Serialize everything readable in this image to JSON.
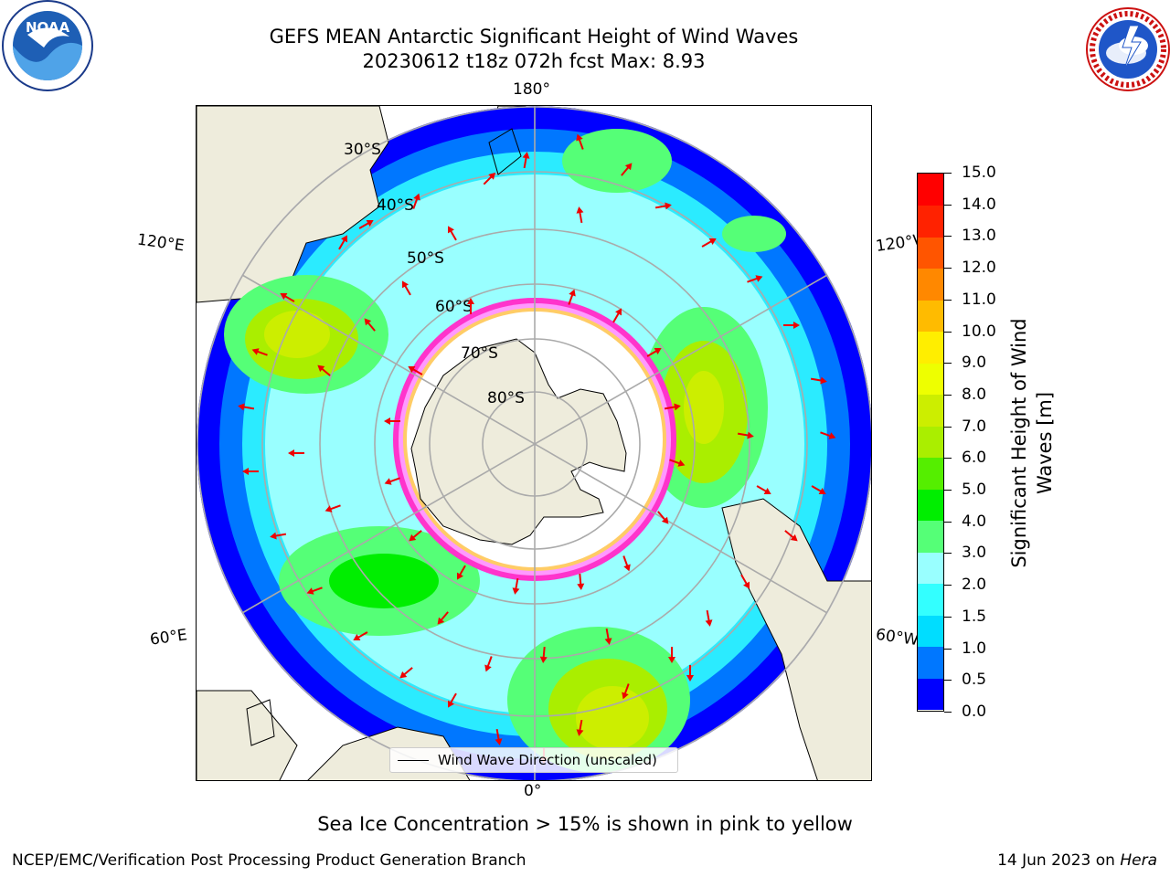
{
  "title": {
    "line1": "GEFS MEAN Antarctic Significant Height of Wind Waves",
    "line2": "20230612 t18z 072h fcst   Max: 8.93"
  },
  "logos": {
    "left": {
      "name": "noaa-logo",
      "text": "NOAA",
      "ring_text": "NATIONAL OCEANIC AND ATMOSPHERIC ADMINISTRATION"
    },
    "right": {
      "name": "nws-logo",
      "ring_text": "NATIONAL WEATHER SERVICE"
    }
  },
  "map": {
    "projection": "south-polar-stereographic",
    "longitude_labels": {
      "top": "180°",
      "bottom": "0°",
      "upper_left": "120°E",
      "upper_right": "120°W",
      "lower_left": "60°E",
      "lower_right": "60°W"
    },
    "latitude_labels": [
      "30°S",
      "40°S",
      "50°S",
      "60°S",
      "70°S",
      "80°S"
    ],
    "land_color": "#eeecdc",
    "ocean_no_data_color": "#ffffff",
    "sea_ice_colors": [
      "#ff33cc",
      "#ff99ff",
      "#ffcc66",
      "#ffff66"
    ],
    "arrow_color": "#ee0000",
    "legend": {
      "entry": "Wind Wave Direction (unscaled)"
    }
  },
  "colorbar": {
    "label_line1": "Significant Height of Wind",
    "label_line2": "Waves [m]",
    "ticks": [
      "0.0",
      "0.5",
      "1.0",
      "1.5",
      "2.0",
      "3.0",
      "4.0",
      "5.0",
      "6.0",
      "7.0",
      "8.0",
      "9.0",
      "10.0",
      "11.0",
      "12.0",
      "13.0",
      "14.0",
      "15.0"
    ],
    "colors": [
      "#0000ff",
      "#0077ff",
      "#00ddff",
      "#33ffff",
      "#99ffff",
      "#55ff77",
      "#00ee00",
      "#55ee00",
      "#aaee00",
      "#ccee00",
      "#eeff00",
      "#ffee00",
      "#ffbb00",
      "#ff8800",
      "#ff5500",
      "#ff2200",
      "#ff0000"
    ]
  },
  "sea_ice_note": "Sea Ice Concentration > 15% is shown in pink to yellow",
  "footer": {
    "left": "NCEP/EMC/Verification Post Processing Product Generation Branch",
    "right_date": "14 Jun 2023 on",
    "right_host": "Hera"
  }
}
